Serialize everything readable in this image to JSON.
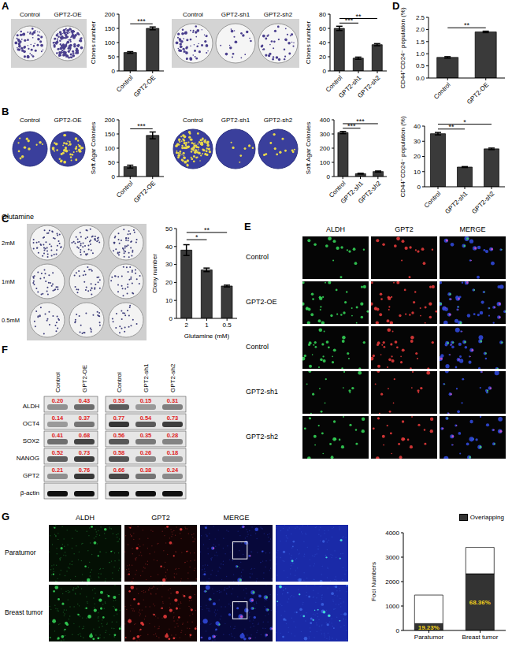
{
  "panel_labels": [
    "A",
    "B",
    "C",
    "D",
    "E",
    "F",
    "G"
  ],
  "chart_data": [
    {
      "type": "bar",
      "ylabel": "Clones number",
      "categories": [
        "Control",
        "GPT2-OE"
      ],
      "values": [
        65,
        150
      ],
      "errors": [
        3,
        5
      ],
      "color": "#3a3a3a",
      "ylim": [
        0,
        200
      ],
      "yticks": [
        0,
        50,
        100,
        150,
        200
      ],
      "significance": [
        {
          "between": [
            "Control",
            "GPT2-OE"
          ],
          "label": "***"
        }
      ]
    },
    {
      "type": "bar",
      "ylabel": "Clones number",
      "categories": [
        "Control",
        "GPT2-sh1",
        "GPT2-sh2"
      ],
      "values": [
        60,
        18,
        37
      ],
      "errors": [
        3,
        1.5,
        1.5
      ],
      "color": "#3a3a3a",
      "ylim": [
        0,
        80
      ],
      "yticks": [
        0,
        20,
        40,
        60,
        80
      ],
      "significance": [
        {
          "between": [
            "Control",
            "GPT2-sh1"
          ],
          "label": "***"
        },
        {
          "between": [
            "Control",
            "GPT2-sh2"
          ],
          "label": "**"
        }
      ]
    },
    {
      "type": "bar",
      "ylabel": "Soft Agar Colonies",
      "categories": [
        "Control",
        "GPT2-OE"
      ],
      "values": [
        35,
        145
      ],
      "errors": [
        5,
        12
      ],
      "color": "#3a3a3a",
      "ylim": [
        0,
        200
      ],
      "yticks": [
        0,
        50,
        100,
        150,
        200
      ],
      "significance": [
        {
          "between": [
            "Control",
            "GPT2-OE"
          ],
          "label": "***"
        }
      ]
    },
    {
      "type": "bar",
      "ylabel": "Soft Agar Colonies",
      "categories": [
        "Control",
        "GPT2-sh1",
        "GPT2-sh2"
      ],
      "values": [
        310,
        20,
        35
      ],
      "errors": [
        8,
        3,
        4
      ],
      "color": "#3a3a3a",
      "ylim": [
        0,
        400
      ],
      "yticks": [
        0,
        100,
        200,
        300,
        400
      ],
      "significance": [
        {
          "between": [
            "Control",
            "GPT2-sh1"
          ],
          "label": "***"
        },
        {
          "between": [
            "Control",
            "GPT2-sh2"
          ],
          "label": "***"
        }
      ]
    },
    {
      "type": "bar",
      "ylabel": "Clony number",
      "xlabel": "Glutamine (mM)",
      "categories": [
        "2",
        "1",
        "0.5"
      ],
      "values": [
        38,
        27,
        18
      ],
      "errors": [
        3,
        1,
        0.5
      ],
      "color": "#3a3a3a",
      "ylim": [
        0,
        50
      ],
      "yticks": [
        0,
        10,
        20,
        30,
        40,
        50
      ],
      "significance": [
        {
          "between": [
            "2",
            "1"
          ],
          "label": "*"
        },
        {
          "between": [
            "2",
            "0.5"
          ],
          "label": "**"
        }
      ]
    },
    {
      "type": "bar",
      "ylabel": "CD44⁺CD24⁻ population (%)",
      "categories": [
        "Control",
        "GPT2-OE"
      ],
      "values": [
        0.85,
        1.9
      ],
      "errors": [
        0.03,
        0.03
      ],
      "color": "#3a3a3a",
      "ylim": [
        0,
        2.5
      ],
      "yticks": [
        {
          "value": 0,
          "label": "0.0"
        },
        {
          "value": 0.5,
          "label": "0.5"
        },
        {
          "value": 1,
          "label": "1.0"
        },
        {
          "value": 1.5,
          "label": "1.5"
        },
        {
          "value": 2,
          "label": "2.0"
        },
        {
          "value": 2.5,
          "label": "2.5"
        }
      ],
      "significance": [
        {
          "between": [
            "Control",
            "GPT2-OE"
          ],
          "label": "**"
        }
      ]
    },
    {
      "type": "bar",
      "ylabel": "CD44⁺CD24⁻ population (%)",
      "categories": [
        "Control",
        "GPT2-sh1",
        "GPT2-sh2"
      ],
      "values": [
        35,
        13,
        25
      ],
      "errors": [
        0.8,
        0.3,
        0.5
      ],
      "color": "#3a3a3a",
      "ylim": [
        0,
        40
      ],
      "yticks": [
        0,
        10,
        20,
        30,
        40
      ],
      "significance": [
        {
          "between": [
            "Control",
            "GPT2-sh1"
          ],
          "label": "**"
        },
        {
          "between": [
            "Control",
            "GPT2-sh2"
          ],
          "label": "*"
        }
      ]
    },
    {
      "type": "bar",
      "stacked": true,
      "ylabel": "Foci Numbers",
      "categories": [
        "Paratumor",
        "Breast tumor"
      ],
      "series": [
        {
          "name": "Overlapping",
          "color": "#333333",
          "values": [
            280,
            2320
          ]
        },
        {
          "color": "#ffffff",
          "values": [
            1170,
            1080
          ]
        }
      ],
      "annotations": [
        {
          "category": "Paratumor",
          "text": "19.23%"
        },
        {
          "category": "Breast tumor",
          "text": "68.36%"
        }
      ],
      "ylim": [
        0,
        4000
      ],
      "yticks": [
        0,
        1000,
        2000,
        3000,
        4000
      ],
      "legend": "upper right"
    }
  ],
  "plates": {
    "A": [
      [
        "Control",
        "GPT2-OE"
      ],
      [
        "Control",
        "GPT2-sh1",
        "GPT2-sh2"
      ]
    ],
    "B": [
      [
        "Control",
        "GPT2-OE"
      ],
      [
        "Control",
        "GPT2-sh1",
        "GPT2-sh2"
      ]
    ],
    "C": {
      "title": "Glutamine",
      "rows": [
        "2mM",
        "1mM",
        "0.5mM"
      ]
    }
  },
  "immunofluorescence": {
    "E": {
      "columns": [
        "ALDH",
        "GPT2",
        "MERGE"
      ],
      "rows": [
        "Control",
        "GPT2-OE",
        "Control",
        "GPT2-sh1",
        "GPT2-sh2"
      ]
    },
    "G": {
      "columns": [
        "ALDH",
        "GPT2",
        "MERGE"
      ],
      "rows": [
        "Paratumor",
        "Breast tumor"
      ]
    }
  },
  "western_blot": {
    "rows": [
      "ALDH",
      "OCT4",
      "SOX2",
      "NANOG",
      "GPT2",
      "β-actin"
    ],
    "groups": [
      {
        "lanes": [
          "Control",
          "GPT2-OE"
        ],
        "values": [
          [
            "0.20",
            "0.43"
          ],
          [
            "0.14",
            "0.37"
          ],
          [
            "0.41",
            "0.68"
          ],
          [
            "0.52",
            "0.73"
          ],
          [
            "0.21",
            "0.76"
          ],
          null
        ]
      },
      {
        "lanes": [
          "Control",
          "GPT2-sh1",
          "GPT2-sh2"
        ],
        "values": [
          [
            "0.53",
            "0.15",
            "0.31"
          ],
          [
            "0.77",
            "0.54",
            "0.73"
          ],
          [
            "0.56",
            "0.35",
            "0.28"
          ],
          [
            "0.58",
            "0.26",
            "0.18"
          ],
          [
            "0.66",
            "0.38",
            "0.24"
          ],
          null
        ]
      }
    ]
  }
}
